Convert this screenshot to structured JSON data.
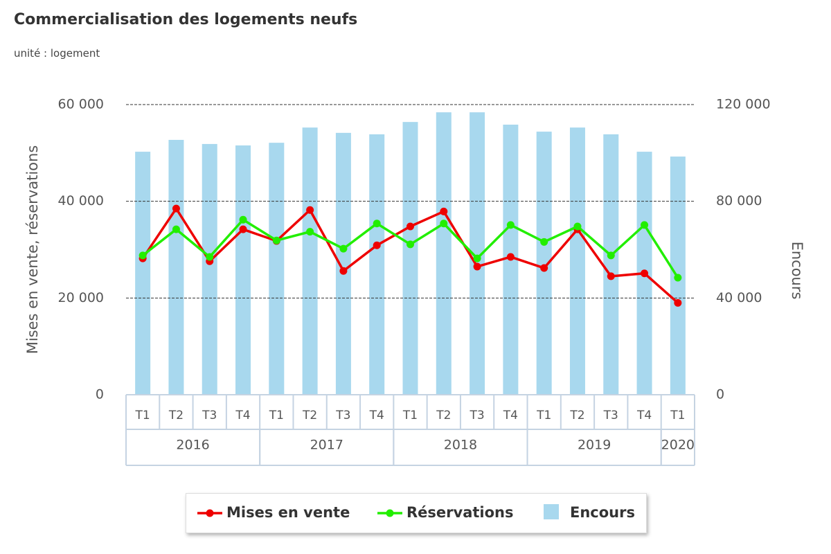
{
  "chart_data": {
    "type": "combo",
    "title": "Commercialisation des logements neufs",
    "subtitle": "unité : logement",
    "y_label": "Mises en vente, réservations",
    "y2_label": "Encours",
    "categories": [
      "T1",
      "T2",
      "T3",
      "T4",
      "T1",
      "T2",
      "T3",
      "T4",
      "T1",
      "T2",
      "T3",
      "T4",
      "T1",
      "T2",
      "T3",
      "T4",
      "T1"
    ],
    "groups": [
      "2016",
      "2016",
      "2016",
      "2016",
      "2017",
      "2017",
      "2017",
      "2017",
      "2018",
      "2018",
      "2018",
      "2018",
      "2019",
      "2019",
      "2019",
      "2019",
      "2020"
    ],
    "series": [
      {
        "name": "Mises en vente",
        "type": "line",
        "color": "#ee0000",
        "axis": "y",
        "values": [
          28200,
          38500,
          27600,
          34200,
          31800,
          38200,
          25600,
          30900,
          34800,
          37900,
          26500,
          28500,
          26200,
          34200,
          24500,
          25100,
          19000
        ]
      },
      {
        "name": "Réservations",
        "type": "line",
        "color": "#22ee00",
        "axis": "y",
        "values": [
          28800,
          34200,
          28500,
          36200,
          31900,
          33700,
          30200,
          35400,
          31100,
          35400,
          28200,
          35100,
          31600,
          34800,
          28800,
          35100,
          24200
        ]
      },
      {
        "name": "Encours",
        "type": "bar",
        "color": "#a8d8ee",
        "axis": "y2",
        "values": [
          100500,
          105400,
          103700,
          103100,
          104200,
          110500,
          108300,
          107700,
          112800,
          116800,
          116800,
          111700,
          108800,
          110500,
          107700,
          100500,
          98500
        ]
      }
    ],
    "ylim": [
      0,
      60000
    ],
    "yticks": [
      0,
      {
        "value": 20000,
        "label": "20 000"
      },
      {
        "value": 40000,
        "label": "40 000"
      },
      {
        "value": 60000,
        "label": "60 000"
      }
    ],
    "y2lim": [
      0,
      120000
    ],
    "y2ticks": [
      0,
      {
        "value": 40000,
        "label": "40 000"
      },
      {
        "value": 80000,
        "label": "80 000"
      },
      {
        "value": 120000,
        "label": "120 000"
      }
    ],
    "grid": true
  }
}
